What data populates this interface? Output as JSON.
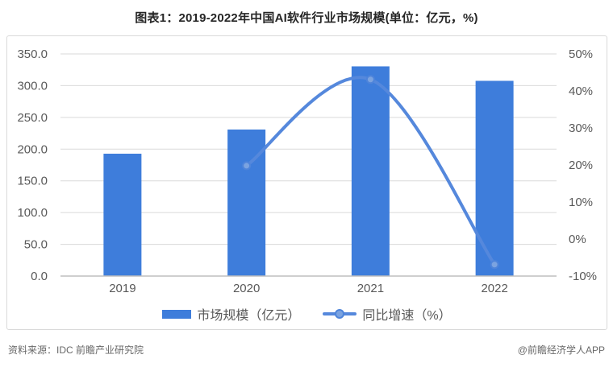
{
  "title": "图表1：2019-2022年中国AI软件行业市场规模(单位：亿元，%)",
  "legend": {
    "items": [
      {
        "label": "市场规模（亿元）",
        "type": "bar"
      },
      {
        "label": "同比增速（%）",
        "type": "line"
      }
    ]
  },
  "footer": {
    "source": "资料来源：IDC 前瞻产业研究院",
    "watermark": "@前瞻经济学人APP"
  },
  "colors": {
    "bar": "#3e7ddb",
    "line": "#5588dc",
    "marker_fill": "#7ba3e0",
    "marker_stroke": "#4e84da",
    "grid": "#d9d9d9",
    "axis_line": "#bfbfbf",
    "tick_text": "#595959"
  },
  "chart_data": {
    "type": "bar+line combo",
    "categories": [
      "2019",
      "2020",
      "2021",
      "2022"
    ],
    "series": [
      {
        "name": "市场规模（亿元）",
        "type": "bar",
        "axis": "left",
        "values": [
          192.8,
          230.9,
          330.4,
          307.6
        ]
      },
      {
        "name": "同比增速（%）",
        "type": "line",
        "axis": "right",
        "values": [
          null,
          19.8,
          43.1,
          -6.9
        ]
      }
    ],
    "left_axis": {
      "min": 0,
      "max": 350,
      "step": 50,
      "tick_labels": [
        "0.0",
        "50.0",
        "100.0",
        "150.0",
        "200.0",
        "250.0",
        "300.0",
        "350.0"
      ]
    },
    "right_axis": {
      "min": -10,
      "max": 50,
      "step": 10,
      "tick_labels": [
        "-10%",
        "0%",
        "10%",
        "20%",
        "30%",
        "40%",
        "50%"
      ]
    },
    "grid": true,
    "line_smooth": true,
    "legend_position": "bottom"
  }
}
